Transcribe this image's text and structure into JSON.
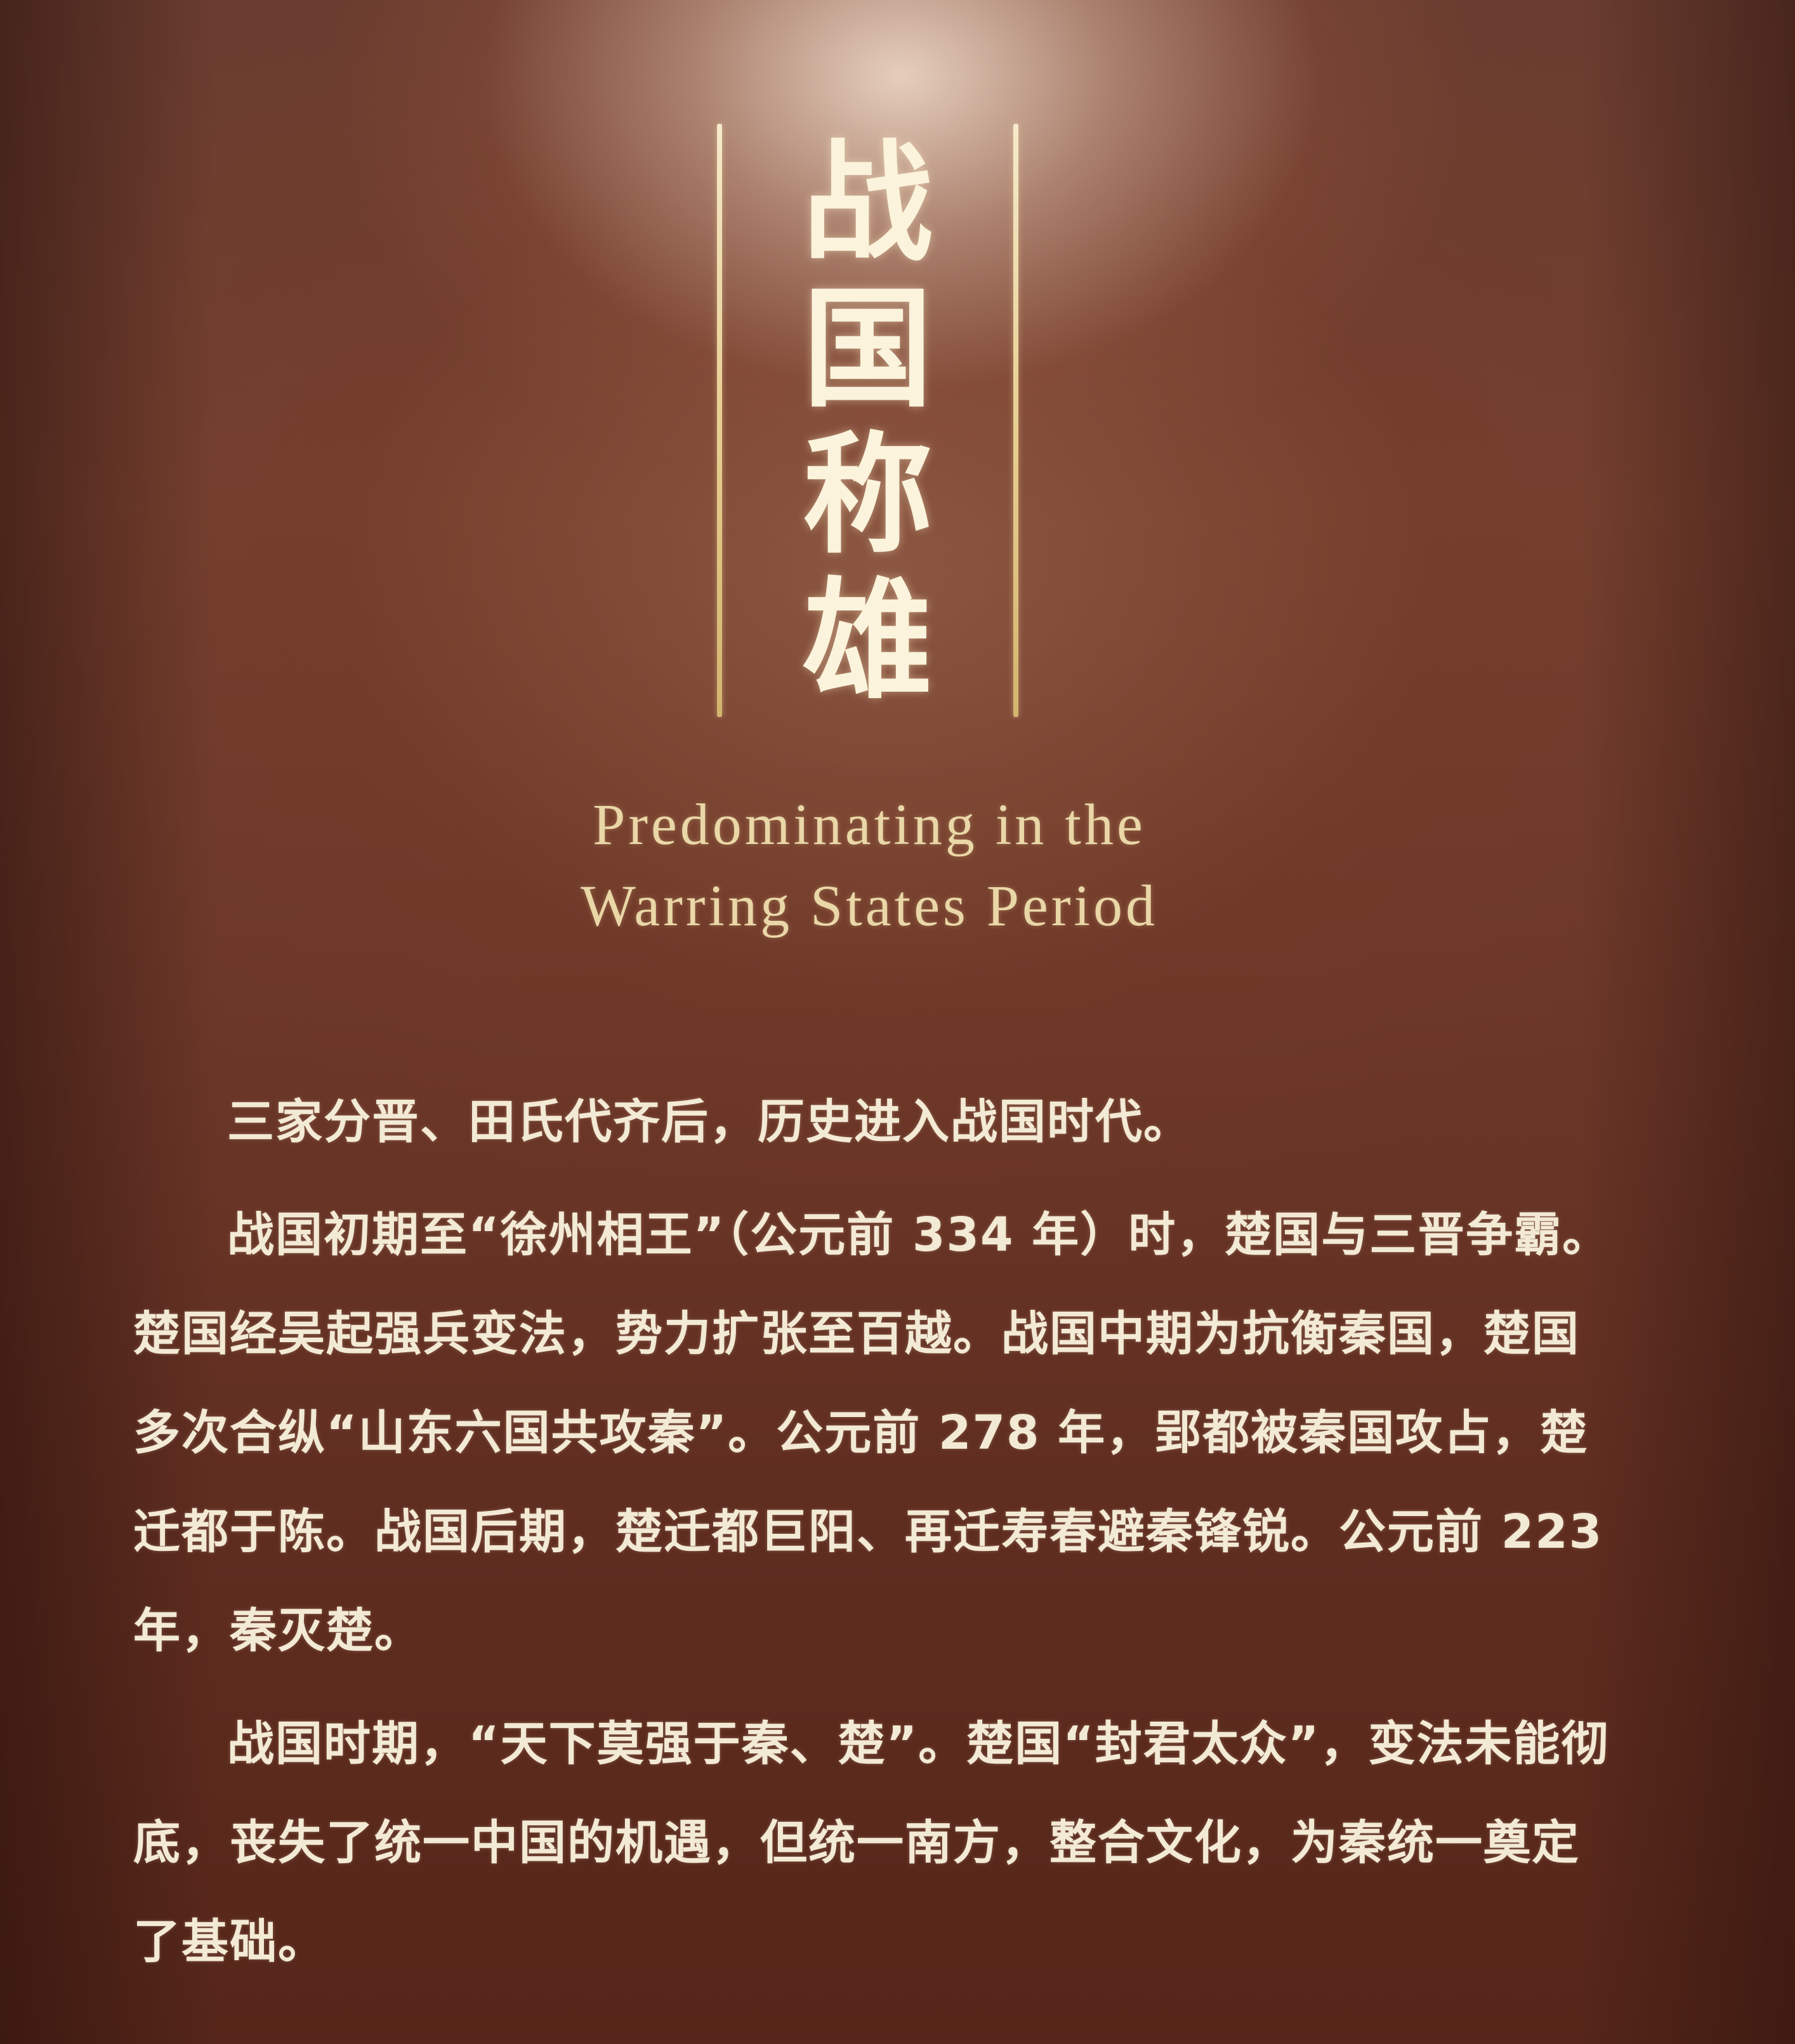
{
  "title": {
    "chars": [
      "战",
      "国",
      "称",
      "雄"
    ]
  },
  "subtitle": {
    "line1": "Predominating in the",
    "line2": "Warring States Period"
  },
  "paragraphs": [
    "三家分晋、田氏代齐后，历史进入战国时代。",
    "战国初期至“徐州相王”（公元前 334 年）时，楚国与三晋争霸。楚国经吴起强兵变法，势力扩张至百越。战国中期为抗衡秦国，楚国多次合纵“山东六国共攻秦”。公元前 278 年，郢都被秦国攻占，楚迁都于陈。战国后期，楚迁都巨阳、再迁寿春避秦锋锐。公元前 223 年，秦灭楚。",
    "战国时期，“天下莫强于秦、楚”。楚国“封君太众”，变法未能彻底，丧失了统一中国的机遇，但统一南方，整合文化，为秦统一奠定了基础。"
  ],
  "colors": {
    "background": "#6b3728",
    "title": "#fbf3dc",
    "frame": "#e8cf92",
    "subtitle": "#ead7a8",
    "body": "#f3ead5"
  }
}
